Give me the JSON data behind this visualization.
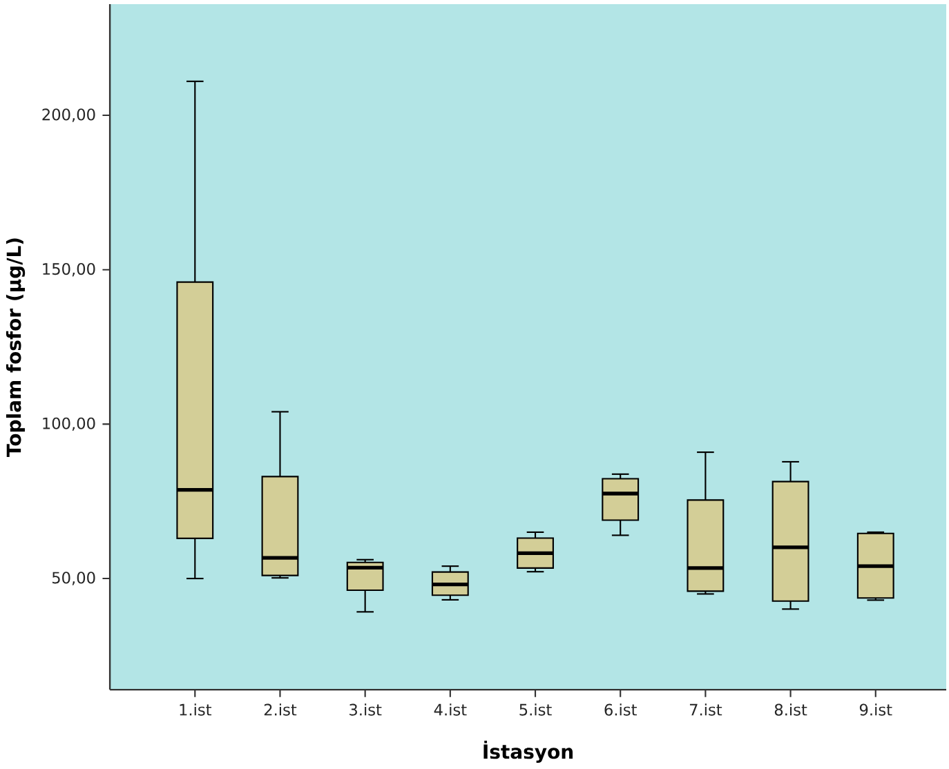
{
  "chart_data": {
    "type": "box",
    "xlabel": "İstasyon",
    "ylabel": "Toplam fosfor (µg/L)",
    "categories": [
      "1.ist",
      "2.ist",
      "3.ist",
      "4.ist",
      "5.ist",
      "6.ist",
      "7.ist",
      "8.ist",
      "9.ist"
    ],
    "color": "#d3ce97",
    "boxes": [
      {
        "low": 50,
        "q1": 63,
        "median": 78.7,
        "q3": 146,
        "high": 211
      },
      {
        "low": 50.2,
        "q1": 51,
        "median": 56.7,
        "q3": 83,
        "high": 104
      },
      {
        "low": 39.2,
        "q1": 46.2,
        "median": 53.5,
        "q3": 55.2,
        "high": 56.1
      },
      {
        "low": 43.1,
        "q1": 44.6,
        "median": 48.1,
        "q3": 52.1,
        "high": 54
      },
      {
        "low": 52.2,
        "q1": 53.4,
        "median": 58.2,
        "q3": 63.1,
        "high": 65
      },
      {
        "low": 64,
        "q1": 68.9,
        "median": 77.5,
        "q3": 82.3,
        "high": 83.8
      },
      {
        "low": 45,
        "q1": 45.9,
        "median": 53.4,
        "q3": 75.4,
        "high": 90.9
      },
      {
        "low": 40.1,
        "q1": 42.7,
        "median": 60.1,
        "q3": 81.4,
        "high": 87.8
      },
      {
        "low": 43,
        "q1": 43.7,
        "median": 54,
        "q3": 64.6,
        "high": 65
      }
    ],
    "ylim": [
      14,
      236
    ],
    "yticks": [
      {
        "value": 50,
        "label": "50,00"
      },
      {
        "value": 100,
        "label": "100,00"
      },
      {
        "value": 150,
        "label": "150,00"
      },
      {
        "value": 200,
        "label": "200,00"
      }
    ]
  }
}
